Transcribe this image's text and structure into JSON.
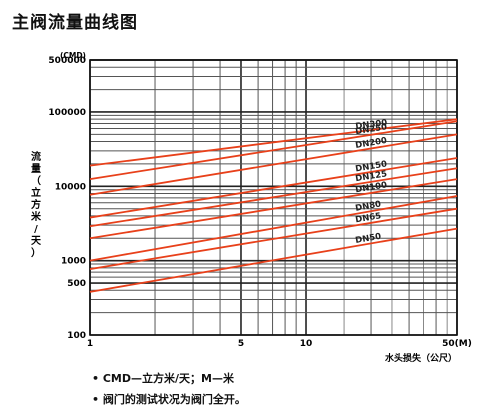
{
  "title": "主阀流量曲线图",
  "notes": [
    "• CMD—立方米/天；M—米",
    "• 阀门的测试状况为阀门全开。"
  ],
  "colors": {
    "curve": "#e8401a",
    "grid": "#222222",
    "gridMinor": "#555555"
  },
  "chart_data": {
    "type": "line",
    "x_scale": "log",
    "y_scale": "log",
    "xlim": [
      1,
      50
    ],
    "ylim": [
      100,
      500000
    ],
    "y_ticks": [
      {
        "value": 500000,
        "label": "500000"
      },
      {
        "value": 100000,
        "label": "100000"
      },
      {
        "value": 10000,
        "label": "10000"
      },
      {
        "value": 1000,
        "label": "1000"
      },
      {
        "value": 500,
        "label": "500"
      },
      {
        "value": 100,
        "label": "100"
      }
    ],
    "x_ticks": [
      {
        "value": 1,
        "label": "1"
      },
      {
        "value": 5,
        "label": "5"
      },
      {
        "value": 10,
        "label": "10"
      },
      {
        "value": 50,
        "label": "50(M)"
      }
    ],
    "y_unit": "(CMD)",
    "ylabel": "流量（立方米/天）",
    "xlabel": "水头损失（公尺）",
    "grid": true,
    "series": [
      {
        "name": "DN300",
        "x": [
          1,
          50
        ],
        "y": [
          19000,
          80000
        ]
      },
      {
        "name": "DN250",
        "x": [
          1,
          50
        ],
        "y": [
          12500,
          75000
        ]
      },
      {
        "name": "DN200",
        "x": [
          1,
          50
        ],
        "y": [
          7700,
          50000
        ]
      },
      {
        "name": "DN150",
        "x": [
          1,
          50
        ],
        "y": [
          3800,
          24000
        ]
      },
      {
        "name": "DN125",
        "x": [
          1,
          50
        ],
        "y": [
          2900,
          17500
        ]
      },
      {
        "name": "DN100",
        "x": [
          1,
          50
        ],
        "y": [
          2000,
          12500
        ]
      },
      {
        "name": "DN80",
        "x": [
          1,
          50
        ],
        "y": [
          1000,
          7400
        ]
      },
      {
        "name": "DN65",
        "x": [
          1,
          50
        ],
        "y": [
          770,
          5000
        ]
      },
      {
        "name": "DN50",
        "x": [
          1,
          50
        ],
        "y": [
          380,
          2700
        ]
      }
    ]
  }
}
